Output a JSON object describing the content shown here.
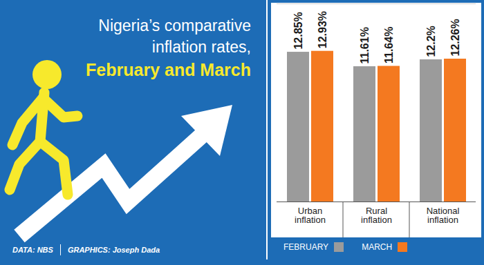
{
  "chart_data": {
    "type": "bar",
    "title": "Nigeria’s comparative inflation rates,",
    "subtitle": "February and March",
    "categories": [
      "Urban inflation",
      "Rural inflation",
      "National inflation"
    ],
    "series": [
      {
        "name": "FEBRUARY",
        "color": "#9b9b9b",
        "values": [
          12.85,
          11.61,
          12.2
        ],
        "value_labels": [
          "12.85%",
          "11.61%",
          "12.2%"
        ]
      },
      {
        "name": "MARCH",
        "color": "#f47920",
        "values": [
          12.93,
          11.64,
          12.26
        ],
        "value_labels": [
          "12.93%",
          "11.64%",
          "12.26%"
        ]
      }
    ],
    "ylim": [
      0,
      17
    ],
    "yticks": [],
    "tick_labels": "x",
    "data_labels": true,
    "grid": false,
    "legend": "bottom",
    "source": "DATA: NBS",
    "credit": "GRAPHICS: Joseph Dada"
  }
}
